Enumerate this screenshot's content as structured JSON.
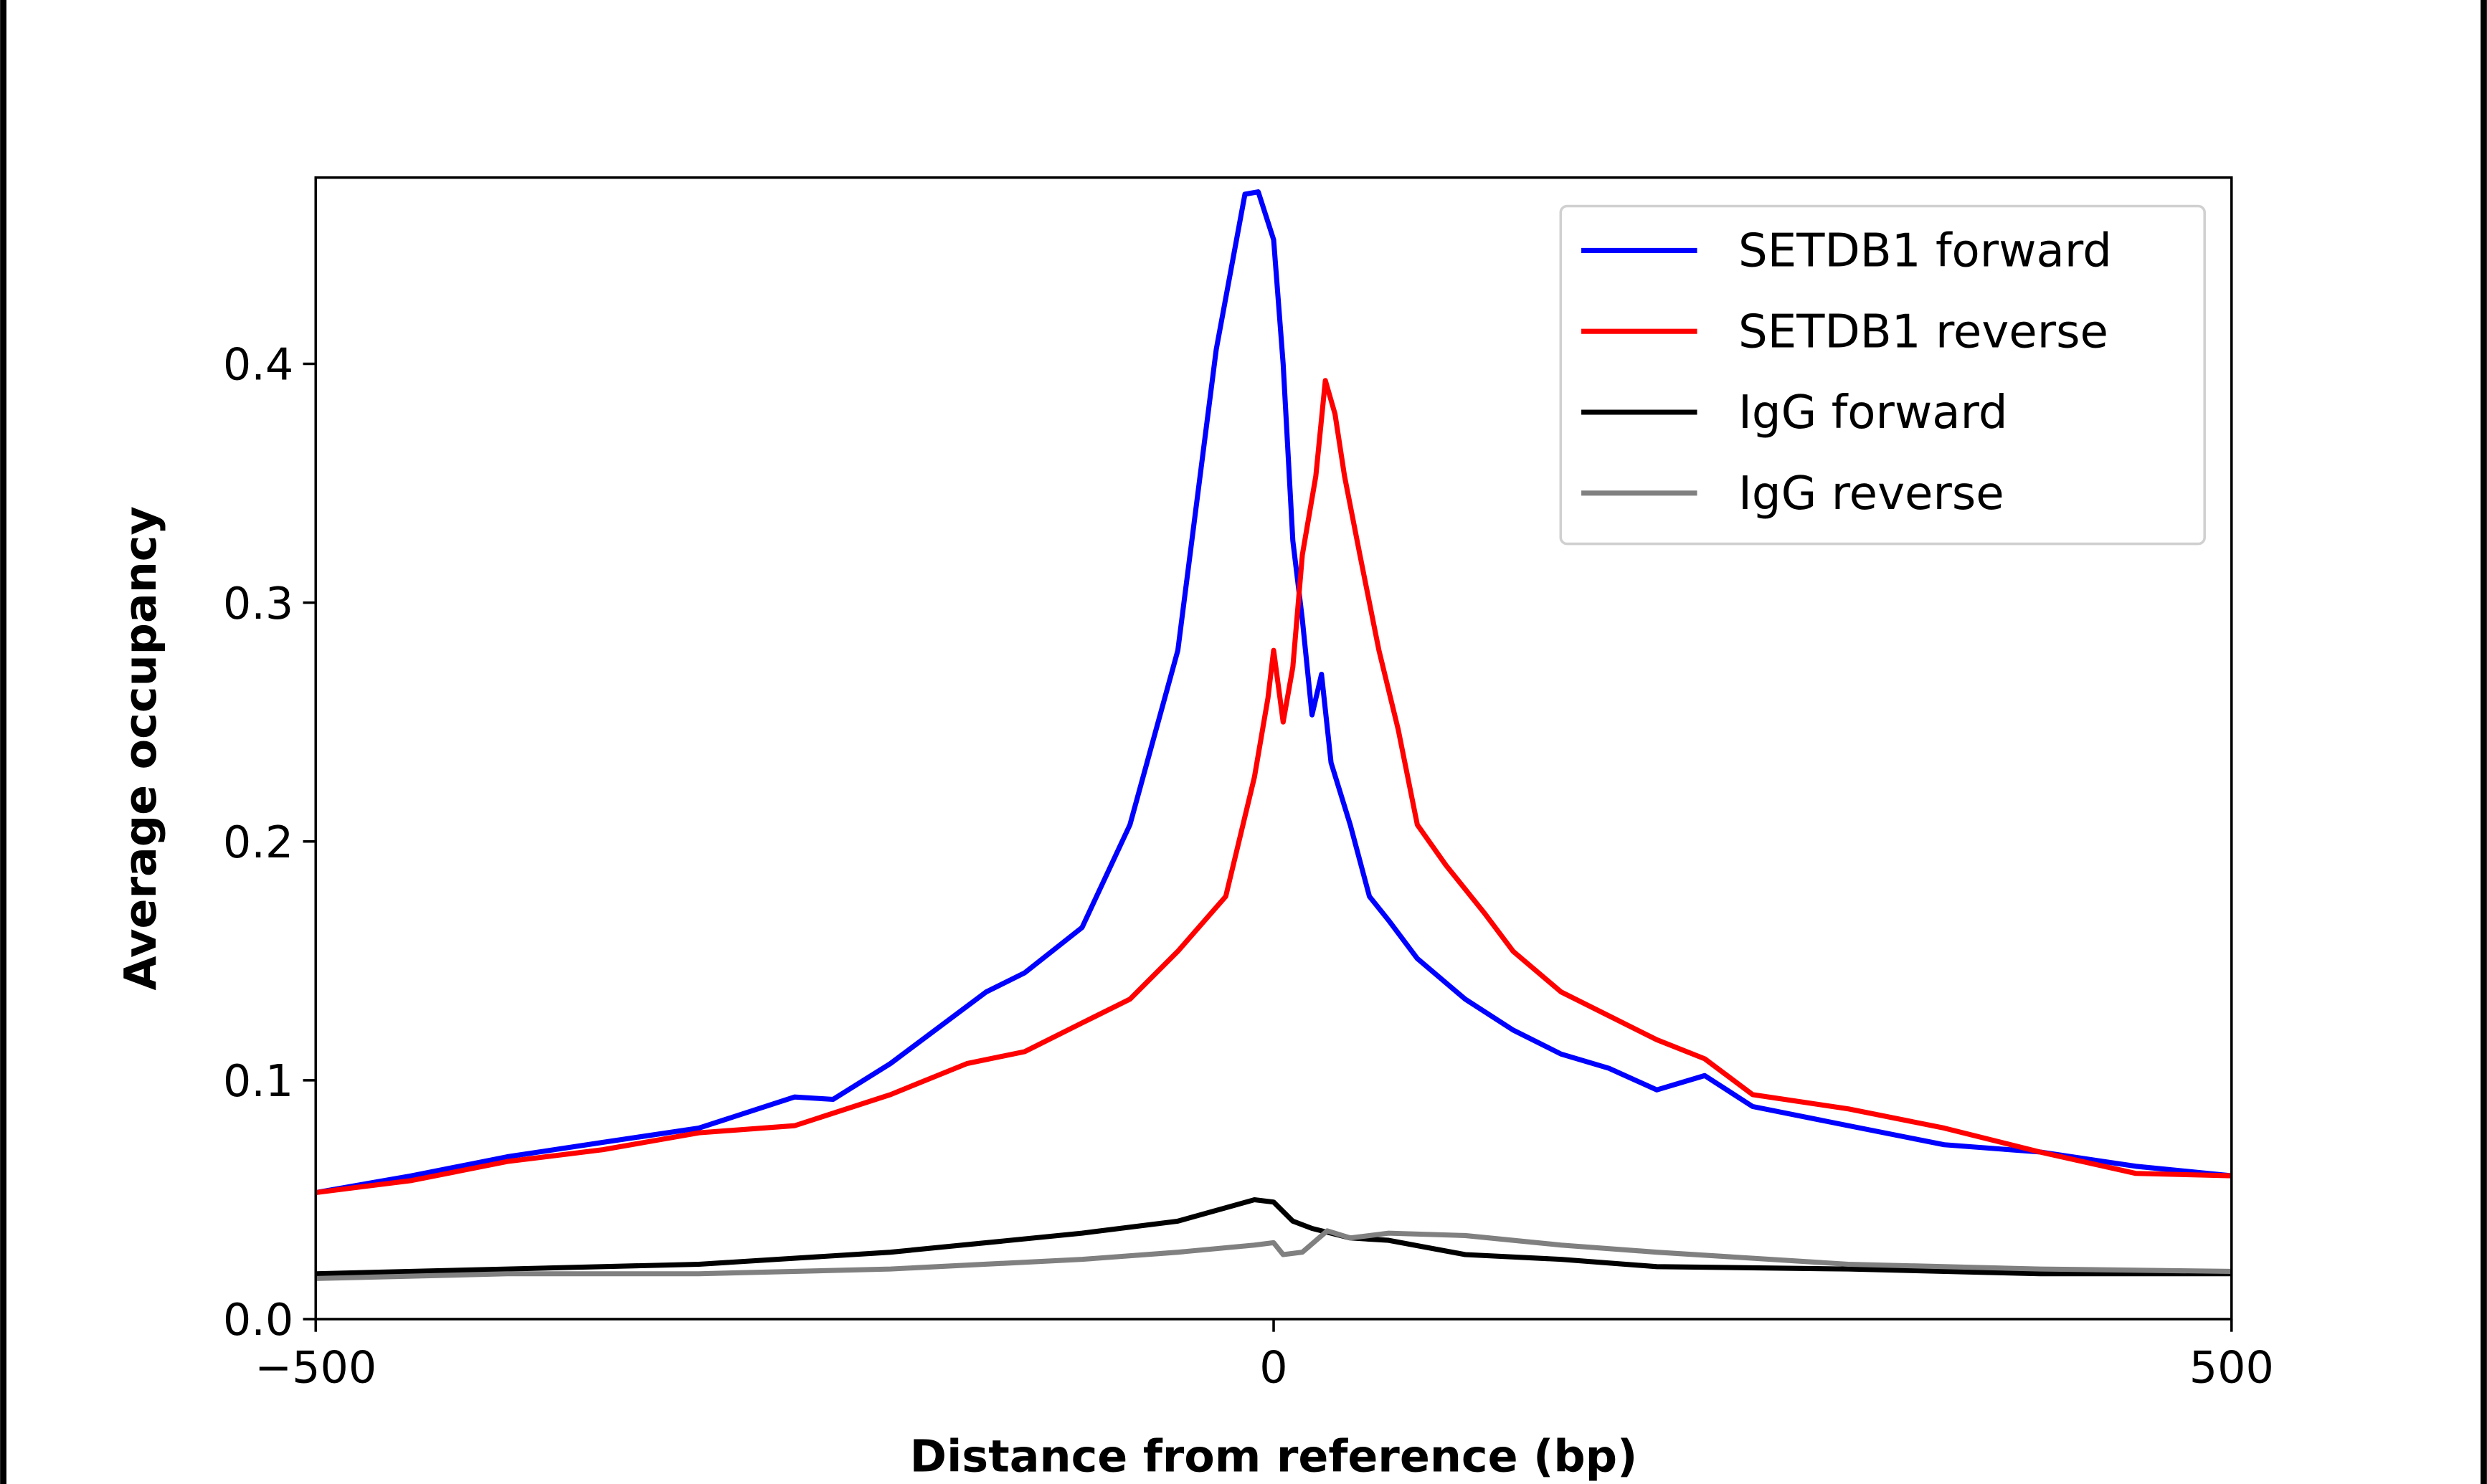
{
  "chart_data": {
    "type": "line",
    "xlabel": "Distance from reference (bp)",
    "ylabel": "Average occupancy",
    "xlim": [
      -500,
      500
    ],
    "ylim": [
      0,
      0.478
    ],
    "xticks": [
      -500,
      0,
      500
    ],
    "xtick_labels": [
      "−500",
      "0",
      "500"
    ],
    "yticks": [
      0.0,
      0.1,
      0.2,
      0.3,
      0.4
    ],
    "ytick_labels": [
      "0.0",
      "0.1",
      "0.2",
      "0.3",
      "0.4"
    ],
    "grid": false,
    "legend_position": "top-right",
    "series": [
      {
        "name": "SETDB1 forward",
        "color": "#0000ff",
        "x": [
          -500,
          -450,
          -400,
          -350,
          -300,
          -250,
          -230,
          -200,
          -150,
          -130,
          -100,
          -75,
          -50,
          -30,
          -15,
          -8,
          0,
          5,
          10,
          15,
          20,
          25,
          30,
          40,
          50,
          60,
          75,
          100,
          125,
          150,
          175,
          200,
          225,
          250,
          300,
          350,
          400,
          450,
          500
        ],
        "y": [
          0.053,
          0.06,
          0.068,
          0.074,
          0.08,
          0.093,
          0.092,
          0.107,
          0.137,
          0.145,
          0.164,
          0.207,
          0.28,
          0.406,
          0.471,
          0.472,
          0.452,
          0.4,
          0.326,
          0.293,
          0.253,
          0.27,
          0.233,
          0.207,
          0.177,
          0.167,
          0.151,
          0.134,
          0.121,
          0.111,
          0.105,
          0.096,
          0.102,
          0.089,
          0.081,
          0.073,
          0.07,
          0.064,
          0.06
        ]
      },
      {
        "name": "SETDB1 reverse",
        "color": "#ff0000",
        "x": [
          -500,
          -450,
          -400,
          -350,
          -300,
          -250,
          -200,
          -160,
          -130,
          -100,
          -75,
          -50,
          -25,
          -10,
          -3,
          0,
          5,
          10,
          15,
          22,
          27,
          32,
          37,
          45,
          55,
          65,
          75,
          90,
          110,
          125,
          150,
          175,
          200,
          225,
          250,
          300,
          350,
          400,
          450,
          500
        ],
        "y": [
          0.053,
          0.058,
          0.066,
          0.071,
          0.078,
          0.081,
          0.094,
          0.107,
          0.112,
          0.124,
          0.134,
          0.154,
          0.177,
          0.227,
          0.26,
          0.28,
          0.25,
          0.273,
          0.32,
          0.353,
          0.393,
          0.379,
          0.353,
          0.32,
          0.28,
          0.247,
          0.207,
          0.19,
          0.17,
          0.154,
          0.137,
          0.127,
          0.117,
          0.109,
          0.094,
          0.088,
          0.08,
          0.07,
          0.061,
          0.06
        ]
      },
      {
        "name": "IgG forward",
        "color": "#000000",
        "x": [
          -500,
          -400,
          -300,
          -200,
          -100,
          -50,
          -10,
          0,
          10,
          20,
          40,
          60,
          100,
          150,
          200,
          300,
          400,
          500
        ],
        "y": [
          0.019,
          0.021,
          0.023,
          0.028,
          0.036,
          0.041,
          0.05,
          0.049,
          0.041,
          0.038,
          0.034,
          0.033,
          0.027,
          0.025,
          0.022,
          0.021,
          0.019,
          0.019
        ]
      },
      {
        "name": "IgG reverse",
        "color": "#808080",
        "x": [
          -500,
          -400,
          -300,
          -200,
          -100,
          -50,
          -10,
          0,
          5,
          15,
          28,
          40,
          60,
          100,
          150,
          200,
          300,
          400,
          500
        ],
        "y": [
          0.017,
          0.019,
          0.019,
          0.021,
          0.025,
          0.028,
          0.031,
          0.032,
          0.027,
          0.028,
          0.037,
          0.034,
          0.036,
          0.035,
          0.031,
          0.028,
          0.023,
          0.021,
          0.02
        ]
      }
    ]
  }
}
